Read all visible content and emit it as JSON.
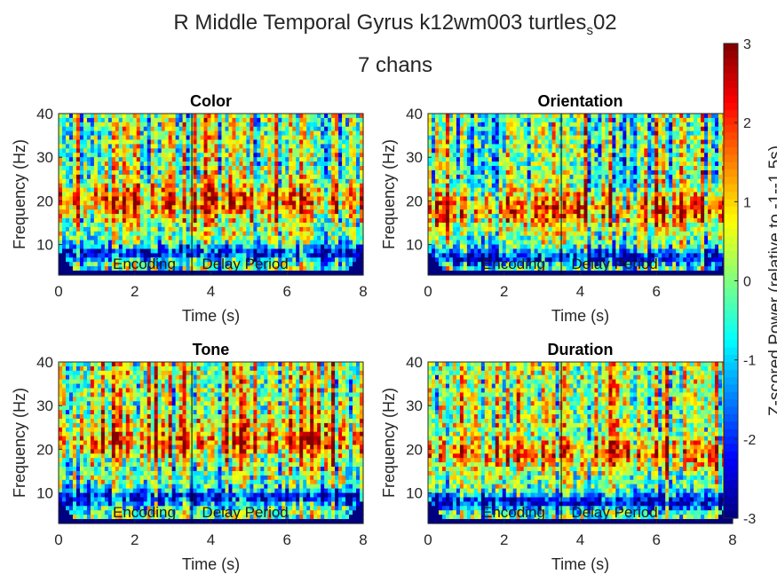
{
  "figure": {
    "title_main": "R Middle Temporal Gyrus k12wm003 turtles",
    "title_sub": "s",
    "title_tail": "02",
    "title_line2": "7 chans"
  },
  "colorbar": {
    "label": "Z-scored Power (relative to -1--1.5s)",
    "ticks": [
      3,
      2,
      1,
      0,
      -1,
      -2,
      -3
    ],
    "range": [
      -3,
      3
    ],
    "colormap": "jet"
  },
  "chart_data": [
    {
      "type": "heatmap",
      "title": "Color",
      "xlabel": "Time (s)",
      "ylabel": "Frequency (Hz)",
      "xlim": [
        0,
        8
      ],
      "ylim": [
        3,
        40
      ],
      "xticks": [
        0,
        2,
        4,
        6,
        8
      ],
      "yticks": [
        10,
        20,
        30,
        40
      ],
      "zlim": [
        -3,
        3
      ],
      "annotations": [
        "Encoding",
        "Delay Period"
      ],
      "event_lines_s": [
        3.5
      ],
      "pattern": {
        "seed": 11,
        "beta_band": 20,
        "alpha_band": 8,
        "high_bias": 0.2
      }
    },
    {
      "type": "heatmap",
      "title": "Orientation",
      "xlabel": "Time (s)",
      "ylabel": "Frequency (Hz)",
      "xlim": [
        0,
        8
      ],
      "ylim": [
        3,
        40
      ],
      "xticks": [
        0,
        2,
        4,
        6,
        8
      ],
      "yticks": [
        10,
        20,
        30,
        40
      ],
      "zlim": [
        -3,
        3
      ],
      "annotations": [
        "Encoding",
        "Delay Period"
      ],
      "event_lines_s": [
        3.5
      ],
      "pattern": {
        "seed": 23,
        "beta_band": 18,
        "alpha_band": 7,
        "high_bias": 0.0
      }
    },
    {
      "type": "heatmap",
      "title": "Tone",
      "xlabel": "Time (s)",
      "ylabel": "Frequency (Hz)",
      "xlim": [
        0,
        8
      ],
      "ylim": [
        3,
        40
      ],
      "xticks": [
        0,
        2,
        4,
        6,
        8
      ],
      "yticks": [
        10,
        20,
        30,
        40
      ],
      "zlim": [
        -3,
        3
      ],
      "annotations": [
        "Encoding",
        "Delay Period"
      ],
      "event_lines_s": [
        3.5
      ],
      "pattern": {
        "seed": 37,
        "beta_band": 22,
        "alpha_band": 9,
        "high_bias": 0.5
      }
    },
    {
      "type": "heatmap",
      "title": "Duration",
      "xlabel": "Time (s)",
      "ylabel": "Frequency (Hz)",
      "xlim": [
        0,
        8
      ],
      "ylim": [
        3,
        40
      ],
      "xticks": [
        0,
        2,
        4,
        6,
        8
      ],
      "yticks": [
        10,
        20,
        30,
        40
      ],
      "zlim": [
        -3,
        3
      ],
      "annotations": [
        "Encoding",
        "Delay Period"
      ],
      "event_lines_s": [
        3.5
      ],
      "pattern": {
        "seed": 53,
        "beta_band": 19,
        "alpha_band": 8,
        "high_bias": 0.6
      }
    }
  ]
}
